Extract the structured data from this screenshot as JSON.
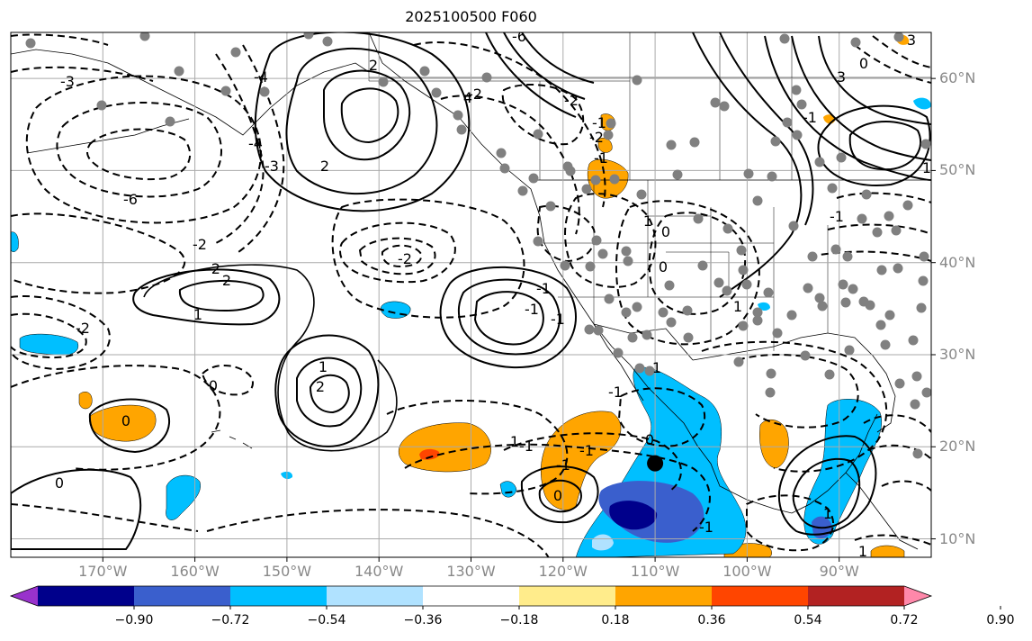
{
  "title": "2025100500 F060",
  "map": {
    "lon_range": [
      -180,
      -80
    ],
    "lat_range": [
      8,
      65
    ],
    "lon_ticks": [
      {
        "lon": -170,
        "label": "170°W"
      },
      {
        "lon": -160,
        "label": "160°W"
      },
      {
        "lon": -150,
        "label": "150°W"
      },
      {
        "lon": -140,
        "label": "140°W"
      },
      {
        "lon": -130,
        "label": "130°W"
      },
      {
        "lon": -120,
        "label": "120°W"
      },
      {
        "lon": -110,
        "label": "110°W"
      },
      {
        "lon": -100,
        "label": "100°W"
      },
      {
        "lon": -90,
        "label": "90°W"
      }
    ],
    "lat_ticks": [
      {
        "lat": 10,
        "label": "10°N"
      },
      {
        "lat": 20,
        "label": "20°N"
      },
      {
        "lat": 30,
        "label": "30°N"
      },
      {
        "lat": 40,
        "label": "40°N"
      },
      {
        "lat": 50,
        "label": "50°N"
      },
      {
        "lat": 60,
        "label": "60°N"
      }
    ],
    "grid": true,
    "contour_labels": [
      "-3",
      "-4",
      "-3",
      "-6",
      "-2",
      "-2",
      "-2",
      "-1",
      "0",
      "-1",
      "-2",
      "-1",
      "-2",
      "-2",
      "-4",
      "-6",
      "-2",
      "0",
      "0",
      "2",
      "1",
      "1",
      "2",
      "2",
      "2",
      "3",
      "3",
      "4",
      "1",
      "-1",
      "-1",
      "0",
      "-1",
      "-1",
      "1",
      "-1",
      "-1",
      "0",
      "1",
      "0",
      "0",
      "1",
      "-1",
      "-1",
      "0",
      "-1",
      "1",
      "1",
      "1"
    ],
    "marker": {
      "lon": -110,
      "lat": 18.2
    }
  },
  "colorbar": {
    "colors": [
      "#9932cc",
      "#00008b",
      "#3a5fcd",
      "#00bfff",
      "#b0e2ff",
      "#ffffff",
      "#ffec8b",
      "#ffa500",
      "#ff4500",
      "#b22222",
      "#ff88aa"
    ],
    "tick_labels": [
      "−0.90",
      "−0.72",
      "−0.54",
      "−0.36",
      "−0.18",
      "0.18",
      "0.36",
      "0.54",
      "0.72",
      "0.90"
    ]
  }
}
